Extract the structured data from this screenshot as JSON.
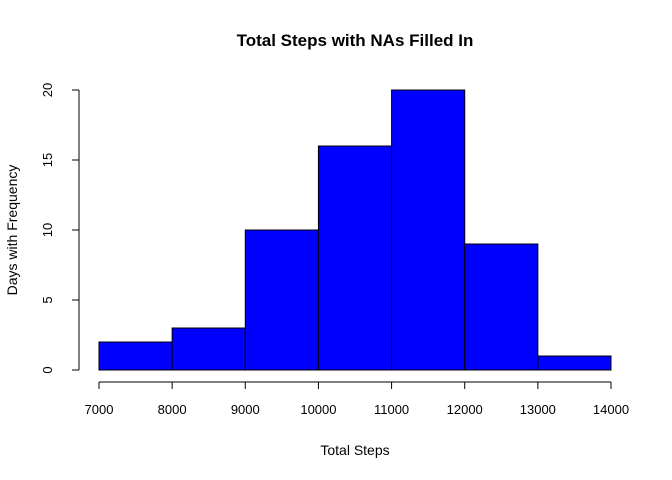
{
  "chart_data": {
    "type": "bar",
    "title": "Total Steps with NAs Filled In",
    "xlabel": "Total Steps",
    "ylabel": "Days with Frequency",
    "bins": [
      {
        "start": 7000,
        "end": 8000,
        "count": 2
      },
      {
        "start": 8000,
        "end": 9000,
        "count": 3
      },
      {
        "start": 9000,
        "end": 10000,
        "count": 10
      },
      {
        "start": 10000,
        "end": 11000,
        "count": 16
      },
      {
        "start": 11000,
        "end": 12000,
        "count": 20
      },
      {
        "start": 12000,
        "end": 13000,
        "count": 9
      },
      {
        "start": 13000,
        "end": 14000,
        "count": 1
      }
    ],
    "xlim": [
      7000,
      14000
    ],
    "ylim": [
      0,
      20
    ],
    "xticks": [
      7000,
      8000,
      9000,
      10000,
      11000,
      12000,
      13000,
      14000
    ],
    "yticks": [
      0,
      5,
      10,
      15,
      20
    ],
    "bar_color": "#0000ff",
    "grid": false
  }
}
